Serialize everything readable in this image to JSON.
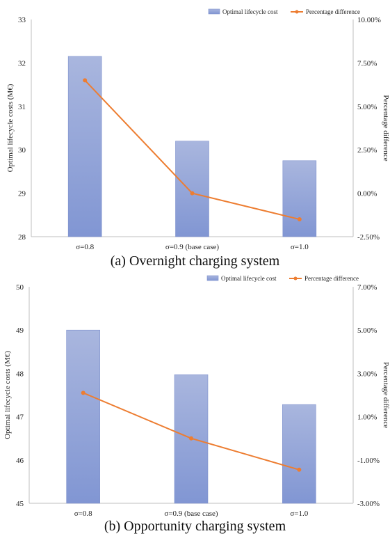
{
  "chart_data": [
    {
      "type": "bar",
      "caption": "(a) Overnight charging system",
      "categories": [
        "σ=0.8",
        "σ=0.9 (base case)",
        "σ=1.0"
      ],
      "series": [
        {
          "name": "Optimal lifecycle cost",
          "type": "bar",
          "axis": "left",
          "values": [
            32.15,
            30.2,
            29.75
          ]
        },
        {
          "name": "Percentage difference",
          "type": "line",
          "axis": "right",
          "values": [
            6.5,
            0.0,
            -1.5
          ]
        }
      ],
      "ylabel": "Optimal lifecycle costs (M€)",
      "y2label": "Percentage difference",
      "ylim": [
        28,
        33
      ],
      "yticks": [
        "28",
        "29",
        "30",
        "31",
        "32",
        "33"
      ],
      "y2lim": [
        -2.5,
        10.0
      ],
      "y2ticks": [
        "-2.50%",
        "0.00%",
        "2.50%",
        "5.00%",
        "7.50%",
        "10.00%"
      ],
      "legend_position": "top-right",
      "colors": {
        "bar_top": "#a9b6de",
        "bar_bottom": "#8196d3",
        "line": "#ed7d31",
        "axis": "#bfbfbf"
      }
    },
    {
      "type": "bar",
      "caption": "(b) Opportunity charging system",
      "categories": [
        "σ=0.8",
        "σ=0.9 (base case)",
        "σ=1.0"
      ],
      "series": [
        {
          "name": "Optimal lifecycle cost",
          "type": "bar",
          "axis": "left",
          "values": [
            49.0,
            47.97,
            47.28
          ]
        },
        {
          "name": "Percentage difference",
          "type": "line",
          "axis": "right",
          "values": [
            2.1,
            0.0,
            -1.45
          ]
        }
      ],
      "ylabel": "Optimal lifecycle costs (M€)",
      "y2label": "Percentage difference",
      "ylim": [
        45,
        50
      ],
      "yticks": [
        "45",
        "46",
        "47",
        "48",
        "49",
        "50"
      ],
      "y2lim": [
        -3.0,
        7.0
      ],
      "y2ticks": [
        "-3.00%",
        "-1.00%",
        "1.00%",
        "3.00%",
        "5.00%",
        "7.00%"
      ],
      "legend_position": "top-right",
      "colors": {
        "bar_top": "#a9b6de",
        "bar_bottom": "#8196d3",
        "line": "#ed7d31",
        "axis": "#bfbfbf"
      }
    }
  ]
}
